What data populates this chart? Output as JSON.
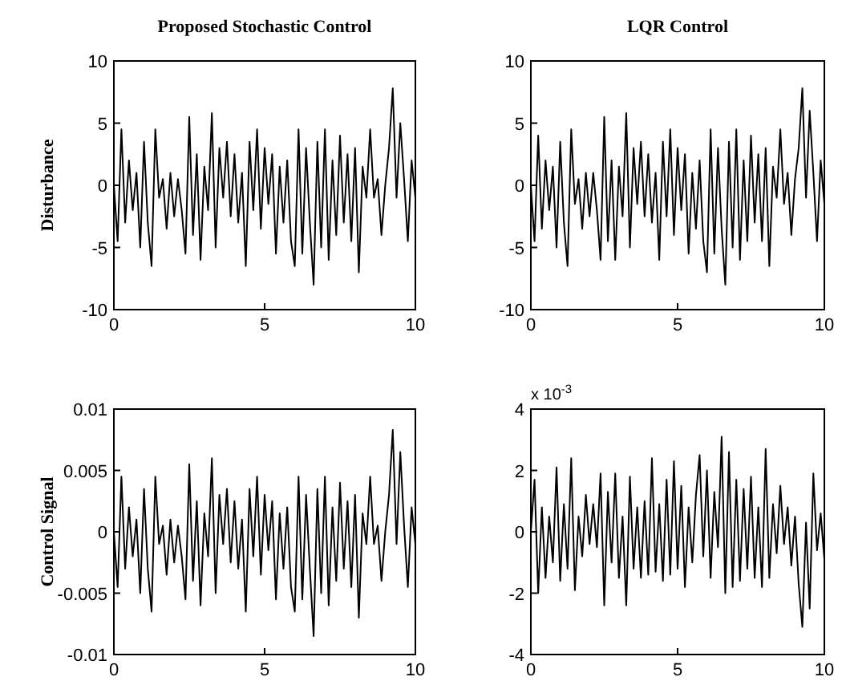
{
  "chart_data": [
    {
      "type": "line",
      "title": "Proposed Stochastic Control",
      "ylabel": "Disturbance",
      "xlim": [
        0,
        10
      ],
      "ylim": [
        -10,
        10
      ],
      "xticks": [
        0,
        5,
        10
      ],
      "yticks": [
        -10,
        -5,
        0,
        5,
        10
      ],
      "x": [
        0,
        0.125,
        0.25,
        0.375,
        0.5,
        0.625,
        0.75,
        0.875,
        1,
        1.125,
        1.25,
        1.375,
        1.5,
        1.625,
        1.75,
        1.875,
        2,
        2.125,
        2.25,
        2.375,
        2.5,
        2.625,
        2.75,
        2.875,
        3,
        3.125,
        3.25,
        3.375,
        3.5,
        3.625,
        3.75,
        3.875,
        4,
        4.125,
        4.25,
        4.375,
        4.5,
        4.625,
        4.75,
        4.875,
        5,
        5.125,
        5.25,
        5.375,
        5.5,
        5.625,
        5.75,
        5.875,
        6,
        6.125,
        6.25,
        6.375,
        6.5,
        6.625,
        6.75,
        6.875,
        7,
        7.125,
        7.25,
        7.375,
        7.5,
        7.625,
        7.75,
        7.875,
        8,
        8.125,
        8.25,
        8.375,
        8.5,
        8.625,
        8.75,
        8.875,
        9,
        9.125,
        9.25,
        9.375,
        9.5,
        9.625,
        9.75,
        9.875,
        10
      ],
      "series": [
        {
          "color": "#000000",
          "values": [
            0,
            -4.5,
            4.5,
            -3,
            2,
            -2,
            1,
            -5,
            3.5,
            -3,
            -6.5,
            4.5,
            -1,
            0.5,
            -3.5,
            1,
            -2.5,
            0.5,
            -2,
            -5.5,
            5.5,
            -4,
            2.5,
            -6,
            1.5,
            -2,
            5.8,
            -5,
            3,
            -1,
            3.5,
            -2.5,
            2.5,
            -3,
            1,
            -6.5,
            3.5,
            -2,
            4.5,
            -3.5,
            3,
            -1.5,
            2.5,
            -5.5,
            1.5,
            -3,
            2,
            -4.5,
            -6.5,
            4.5,
            -5.5,
            3,
            -3,
            -8,
            3.5,
            -5,
            4.5,
            -6,
            2,
            -4,
            4,
            -3,
            2.5,
            -4.5,
            3,
            -7,
            1.5,
            -1,
            4.5,
            -1,
            0.5,
            -4,
            0,
            3,
            7.8,
            -1,
            5,
            0.5,
            -4.5,
            2,
            -1
          ]
        }
      ]
    },
    {
      "type": "line",
      "title": "LQR Control",
      "xlim": [
        0,
        10
      ],
      "ylim": [
        -10,
        10
      ],
      "xticks": [
        0,
        5,
        10
      ],
      "yticks": [
        -10,
        -5,
        0,
        5,
        10
      ],
      "x": [
        0,
        0.125,
        0.25,
        0.375,
        0.5,
        0.625,
        0.75,
        0.875,
        1,
        1.125,
        1.25,
        1.375,
        1.5,
        1.625,
        1.75,
        1.875,
        2,
        2.125,
        2.25,
        2.375,
        2.5,
        2.625,
        2.75,
        2.875,
        3,
        3.125,
        3.25,
        3.375,
        3.5,
        3.625,
        3.75,
        3.875,
        4,
        4.125,
        4.25,
        4.375,
        4.5,
        4.625,
        4.75,
        4.875,
        5,
        5.125,
        5.25,
        5.375,
        5.5,
        5.625,
        5.75,
        5.875,
        6,
        6.125,
        6.25,
        6.375,
        6.5,
        6.625,
        6.75,
        6.875,
        7,
        7.125,
        7.25,
        7.375,
        7.5,
        7.625,
        7.75,
        7.875,
        8,
        8.125,
        8.25,
        8.375,
        8.5,
        8.625,
        8.75,
        8.875,
        9,
        9.125,
        9.25,
        9.375,
        9.5,
        9.625,
        9.75,
        9.875,
        10
      ],
      "series": [
        {
          "color": "#000000",
          "values": [
            0,
            -4.5,
            4,
            -3.5,
            2,
            -2,
            1.5,
            -5,
            3.5,
            -3,
            -6.5,
            4.5,
            -1.5,
            0.5,
            -3.5,
            1,
            -2.5,
            1,
            -2,
            -6,
            5.5,
            -4.5,
            2,
            -6,
            1.5,
            -2.5,
            5.8,
            -5,
            3,
            -1.5,
            3.5,
            -2.5,
            2.5,
            -3,
            1,
            -6,
            3.5,
            -2.5,
            4.5,
            -4,
            3,
            -2,
            2.5,
            -5.5,
            1,
            -3.5,
            2,
            -4.5,
            -7,
            4.5,
            -5.5,
            3,
            -3.5,
            -8,
            3.5,
            -5,
            4.5,
            -6,
            2,
            -4.5,
            4,
            -3,
            2.5,
            -4.5,
            3,
            -6.5,
            1.5,
            -1,
            4.5,
            -1.5,
            1,
            -4,
            0.5,
            3,
            7.8,
            -1,
            6,
            1,
            -4.5,
            2,
            -1.5
          ]
        }
      ]
    },
    {
      "type": "line",
      "ylabel": "Control Signal",
      "xlim": [
        0,
        10
      ],
      "ylim": [
        -0.01,
        0.01
      ],
      "xticks": [
        0,
        5,
        10
      ],
      "yticks": [
        -0.01,
        -0.005,
        0,
        0.005,
        0.01
      ],
      "x": [
        0,
        0.125,
        0.25,
        0.375,
        0.5,
        0.625,
        0.75,
        0.875,
        1,
        1.125,
        1.25,
        1.375,
        1.5,
        1.625,
        1.75,
        1.875,
        2,
        2.125,
        2.25,
        2.375,
        2.5,
        2.625,
        2.75,
        2.875,
        3,
        3.125,
        3.25,
        3.375,
        3.5,
        3.625,
        3.75,
        3.875,
        4,
        4.125,
        4.25,
        4.375,
        4.5,
        4.625,
        4.75,
        4.875,
        5,
        5.125,
        5.25,
        5.375,
        5.5,
        5.625,
        5.75,
        5.875,
        6,
        6.125,
        6.25,
        6.375,
        6.5,
        6.625,
        6.75,
        6.875,
        7,
        7.125,
        7.25,
        7.375,
        7.5,
        7.625,
        7.75,
        7.875,
        8,
        8.125,
        8.25,
        8.375,
        8.5,
        8.625,
        8.75,
        8.875,
        9,
        9.125,
        9.25,
        9.375,
        9.5,
        9.625,
        9.75,
        9.875,
        10
      ],
      "series": [
        {
          "color": "#000000",
          "values": [
            0,
            -0.0045,
            0.0045,
            -0.003,
            0.002,
            -0.002,
            0.001,
            -0.005,
            0.0035,
            -0.003,
            -0.0065,
            0.0045,
            -0.001,
            0.0005,
            -0.0035,
            0.001,
            -0.0025,
            0.0005,
            -0.002,
            -0.0055,
            0.0055,
            -0.004,
            0.0025,
            -0.006,
            0.0015,
            -0.002,
            0.006,
            -0.005,
            0.003,
            -0.001,
            0.0035,
            -0.0025,
            0.0025,
            -0.003,
            0.001,
            -0.0065,
            0.0035,
            -0.002,
            0.0045,
            -0.0035,
            0.003,
            -0.0015,
            0.0025,
            -0.0055,
            0.0015,
            -0.003,
            0.002,
            -0.0045,
            -0.0065,
            0.0045,
            -0.0055,
            0.003,
            -0.003,
            -0.0085,
            0.0035,
            -0.005,
            0.0045,
            -0.006,
            0.002,
            -0.004,
            0.004,
            -0.003,
            0.0025,
            -0.0045,
            0.003,
            -0.007,
            0.0015,
            -0.001,
            0.0045,
            -0.001,
            0.0005,
            -0.004,
            0,
            0.003,
            0.0083,
            -0.001,
            0.0065,
            0.0005,
            -0.0045,
            0.002,
            -0.001
          ]
        }
      ]
    },
    {
      "type": "line",
      "annotations": [
        "x 10$^{-3}$"
      ],
      "xlim": [
        0,
        10
      ],
      "ylim": [
        -4,
        4
      ],
      "xticks": [
        0,
        5,
        10
      ],
      "yticks": [
        -4,
        -2,
        0,
        2,
        4
      ],
      "x": [
        0,
        0.125,
        0.25,
        0.375,
        0.5,
        0.625,
        0.75,
        0.875,
        1,
        1.125,
        1.25,
        1.375,
        1.5,
        1.625,
        1.75,
        1.875,
        2,
        2.125,
        2.25,
        2.375,
        2.5,
        2.625,
        2.75,
        2.875,
        3,
        3.125,
        3.25,
        3.375,
        3.5,
        3.625,
        3.75,
        3.875,
        4,
        4.125,
        4.25,
        4.375,
        4.5,
        4.625,
        4.75,
        4.875,
        5,
        5.125,
        5.25,
        5.375,
        5.5,
        5.625,
        5.75,
        5.875,
        6,
        6.125,
        6.25,
        6.375,
        6.5,
        6.625,
        6.75,
        6.875,
        7,
        7.125,
        7.25,
        7.375,
        7.5,
        7.625,
        7.75,
        7.875,
        8,
        8.125,
        8.25,
        8.375,
        8.5,
        8.625,
        8.75,
        8.875,
        9,
        9.125,
        9.25,
        9.375,
        9.5,
        9.625,
        9.75,
        9.875,
        10
      ],
      "series": [
        {
          "color": "#000000",
          "values": [
            0,
            1.7,
            -2,
            0.8,
            -1.5,
            0.5,
            -1,
            2.1,
            -1.6,
            0.9,
            -1.2,
            2.4,
            -1.9,
            0.5,
            -0.8,
            1.2,
            -0.4,
            0.9,
            -0.5,
            1.9,
            -2.4,
            1.3,
            -1,
            1.9,
            -1.5,
            0.5,
            -2.4,
            1.8,
            -1.2,
            0.8,
            -1.5,
            1,
            -1.4,
            2.4,
            -1.3,
            0.9,
            -1.6,
            1.7,
            -1.4,
            2.3,
            -1.2,
            1.5,
            -1.8,
            0.8,
            -1,
            1.2,
            2.5,
            -0.8,
            2,
            -1.5,
            1.3,
            -0.5,
            3.1,
            -2,
            2.6,
            -1.8,
            1.7,
            -1.6,
            1.4,
            -1.2,
            1.8,
            -1.5,
            0.8,
            -1.8,
            2.7,
            -1.5,
            0.9,
            -0.7,
            1.5,
            -0.4,
            0.8,
            -1.1,
            0.5,
            -1.7,
            -3.1,
            0.3,
            -2.5,
            1.9,
            -0.6,
            0.6,
            -0.9
          ]
        }
      ]
    }
  ]
}
